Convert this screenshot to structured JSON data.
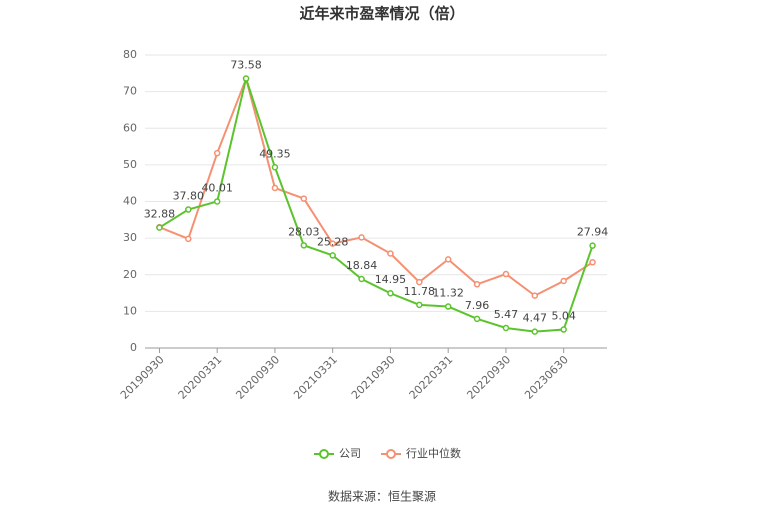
{
  "chart_data": {
    "type": "line",
    "title": "近年来市盈率情况（倍）",
    "categories": [
      "20190930",
      null,
      "20200331",
      null,
      "20200930",
      null,
      "20210331",
      null,
      "20210930",
      null,
      "20220331",
      null,
      "20220930",
      null,
      "20230630",
      null
    ],
    "series": [
      {
        "name": "公司",
        "color": "#5bc42d",
        "values": [
          32.88,
          37.8,
          40.01,
          73.58,
          49.35,
          28.03,
          25.28,
          18.84,
          14.95,
          11.78,
          11.32,
          7.96,
          5.47,
          4.47,
          5.04,
          27.94
        ],
        "value_labels": [
          "32.88",
          "37.80",
          "40.01",
          "73.58",
          "49.35",
          "28.03",
          "25.28",
          "18.84",
          "14.95",
          "11.78",
          "11.32",
          "7.96",
          "5.47",
          "4.47",
          "5.04",
          "27.94"
        ]
      },
      {
        "name": "行业中位数",
        "color": "#f59072",
        "values": [
          33,
          29.8,
          53.2,
          73.5,
          43.7,
          40.8,
          28.5,
          30.2,
          25.8,
          18,
          24.2,
          17.4,
          20.2,
          14.3,
          18.3,
          23.4
        ]
      }
    ],
    "ylim": [
      0,
      80
    ],
    "yticks": [
      0,
      10,
      20,
      30,
      40,
      50,
      60,
      70,
      80
    ],
    "grid": true,
    "legend": "bottom",
    "source": "数据来源：恒生聚源"
  }
}
